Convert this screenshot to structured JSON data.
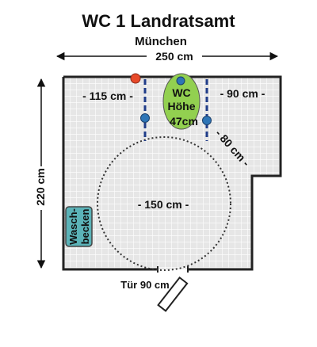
{
  "title": "WC 1 Landratsamt",
  "subtitle": "München",
  "dimensions": {
    "width": "250 cm",
    "height": "220 cm",
    "left_clearance": "- 115 cm -",
    "right_clearance": "- 90 cm -",
    "diagonal": "- 80 cm -",
    "circle": "- 150 cm -",
    "door": "Tür 90 cm"
  },
  "toilet": {
    "line1": "WC",
    "line2": "Höhe",
    "line3": "47cm"
  },
  "sink": {
    "line1": "Wasch-",
    "line2": "becken"
  },
  "colors": {
    "toilet_fill": "#92d050",
    "sink_fill": "#5bb3b8",
    "handle_blue": "#2e75b6",
    "handle_red": "#e84a2a",
    "grab_bar": "#1f3c88",
    "wall": "#222222",
    "tile_line": "#b8b8b8",
    "tile_bg": "#e6e6e6"
  }
}
